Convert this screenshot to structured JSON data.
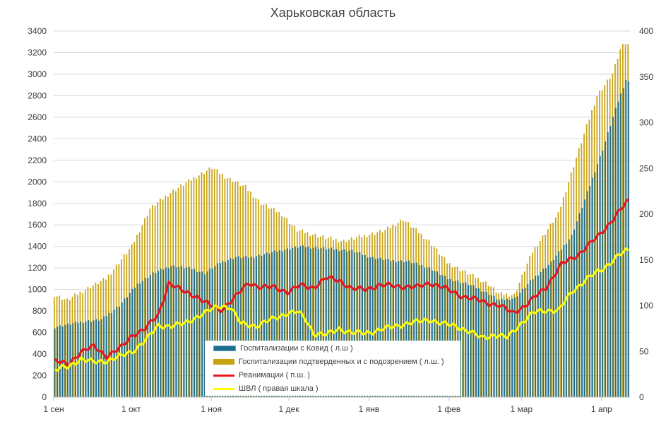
{
  "chart_data": {
    "type": "bar+line",
    "title": "Харьковская область",
    "left_axis": {
      "min": 0,
      "max": 3400,
      "step": 200,
      "ticks": [
        "0",
        "200",
        "400",
        "600",
        "800",
        "1000",
        "1200",
        "1400",
        "1600",
        "1800",
        "2000",
        "2200",
        "2400",
        "2600",
        "2800",
        "3000",
        "3200",
        "3400"
      ]
    },
    "right_axis": {
      "min": 0,
      "max": 400,
      "step": 50,
      "ticks": [
        "0",
        "50",
        "100",
        "150",
        "200",
        "250",
        "300",
        "350",
        "400"
      ]
    },
    "x_labels": [
      {
        "label": "1 сен",
        "day": 0
      },
      {
        "label": "1 окт",
        "day": 30
      },
      {
        "label": "1 ноя",
        "day": 61
      },
      {
        "label": "1 дек",
        "day": 91
      },
      {
        "label": "1 янв",
        "day": 122
      },
      {
        "label": "1 фев",
        "day": 153
      },
      {
        "label": "1 мар",
        "day": 181
      },
      {
        "label": "1 апр",
        "day": 212
      }
    ],
    "total_days": 223,
    "series": [
      {
        "name": "Госпитализации подтверденных и с подозрением ( л.ш. )",
        "type": "bar",
        "axis": "left",
        "color": "#C8A414",
        "keypoints": [
          [
            0,
            950
          ],
          [
            5,
            900
          ],
          [
            12,
            1000
          ],
          [
            20,
            1100
          ],
          [
            30,
            1400
          ],
          [
            37,
            1750
          ],
          [
            45,
            1900
          ],
          [
            55,
            2050
          ],
          [
            61,
            2130
          ],
          [
            66,
            2050
          ],
          [
            74,
            1950
          ],
          [
            80,
            1800
          ],
          [
            88,
            1700
          ],
          [
            94,
            1550
          ],
          [
            105,
            1480
          ],
          [
            112,
            1450
          ],
          [
            120,
            1500
          ],
          [
            128,
            1550
          ],
          [
            135,
            1650
          ],
          [
            145,
            1450
          ],
          [
            152,
            1250
          ],
          [
            160,
            1150
          ],
          [
            168,
            1050
          ],
          [
            172,
            960
          ],
          [
            178,
            950
          ],
          [
            185,
            1350
          ],
          [
            195,
            1700
          ],
          [
            203,
            2300
          ],
          [
            210,
            2800
          ],
          [
            216,
            3000
          ],
          [
            220,
            3300
          ],
          [
            223,
            3250
          ]
        ]
      },
      {
        "name": "Госпитализации с Ковид ( л.ш )",
        "type": "bar",
        "axis": "left",
        "color": "#1F6E8C",
        "keypoints": [
          [
            0,
            650
          ],
          [
            10,
            700
          ],
          [
            18,
            720
          ],
          [
            25,
            850
          ],
          [
            32,
            1050
          ],
          [
            38,
            1150
          ],
          [
            45,
            1220
          ],
          [
            52,
            1200
          ],
          [
            58,
            1150
          ],
          [
            64,
            1250
          ],
          [
            70,
            1300
          ],
          [
            76,
            1300
          ],
          [
            85,
            1350
          ],
          [
            95,
            1400
          ],
          [
            105,
            1380
          ],
          [
            115,
            1360
          ],
          [
            122,
            1300
          ],
          [
            130,
            1270
          ],
          [
            137,
            1260
          ],
          [
            145,
            1200
          ],
          [
            152,
            1100
          ],
          [
            160,
            1050
          ],
          [
            168,
            960
          ],
          [
            172,
            900
          ],
          [
            178,
            920
          ],
          [
            185,
            1100
          ],
          [
            192,
            1250
          ],
          [
            200,
            1500
          ],
          [
            206,
            1900
          ],
          [
            212,
            2300
          ],
          [
            218,
            2750
          ],
          [
            221,
            2950
          ],
          [
            223,
            2900
          ]
        ]
      },
      {
        "name": "Реанимации ( п.ш. )",
        "type": "line",
        "axis": "right",
        "color": "#E8151B",
        "keypoints": [
          [
            0,
            40
          ],
          [
            5,
            35
          ],
          [
            10,
            50
          ],
          [
            15,
            55
          ],
          [
            20,
            45
          ],
          [
            26,
            55
          ],
          [
            30,
            68
          ],
          [
            35,
            75
          ],
          [
            40,
            90
          ],
          [
            44,
            125
          ],
          [
            50,
            115
          ],
          [
            55,
            110
          ],
          [
            60,
            100
          ],
          [
            64,
            95
          ],
          [
            70,
            110
          ],
          [
            75,
            125
          ],
          [
            80,
            120
          ],
          [
            85,
            120
          ],
          [
            90,
            115
          ],
          [
            95,
            122
          ],
          [
            100,
            120
          ],
          [
            105,
            130
          ],
          [
            110,
            128
          ],
          [
            115,
            118
          ],
          [
            120,
            118
          ],
          [
            125,
            122
          ],
          [
            130,
            122
          ],
          [
            140,
            120
          ],
          [
            145,
            125
          ],
          [
            150,
            120
          ],
          [
            158,
            110
          ],
          [
            165,
            105
          ],
          [
            172,
            100
          ],
          [
            177,
            92
          ],
          [
            182,
            100
          ],
          [
            190,
            120
          ],
          [
            196,
            145
          ],
          [
            202,
            155
          ],
          [
            210,
            175
          ],
          [
            216,
            195
          ],
          [
            219,
            205
          ],
          [
            223,
            218
          ]
        ]
      },
      {
        "name": "ШВЛ ( правая шкала )",
        "type": "line",
        "axis": "right",
        "color": "#FFFF00",
        "keypoints": [
          [
            0,
            30
          ],
          [
            5,
            33
          ],
          [
            10,
            42
          ],
          [
            15,
            38
          ],
          [
            20,
            40
          ],
          [
            26,
            45
          ],
          [
            30,
            50
          ],
          [
            36,
            65
          ],
          [
            40,
            78
          ],
          [
            45,
            78
          ],
          [
            50,
            80
          ],
          [
            55,
            88
          ],
          [
            60,
            95
          ],
          [
            64,
            100
          ],
          [
            68,
            98
          ],
          [
            72,
            80
          ],
          [
            78,
            78
          ],
          [
            84,
            85
          ],
          [
            90,
            92
          ],
          [
            94,
            93
          ],
          [
            97,
            85
          ],
          [
            100,
            70
          ],
          [
            105,
            68
          ],
          [
            110,
            75
          ],
          [
            115,
            70
          ],
          [
            120,
            70
          ],
          [
            128,
            75
          ],
          [
            135,
            80
          ],
          [
            140,
            82
          ],
          [
            145,
            85
          ],
          [
            150,
            80
          ],
          [
            155,
            78
          ],
          [
            160,
            72
          ],
          [
            165,
            65
          ],
          [
            170,
            68
          ],
          [
            175,
            65
          ],
          [
            180,
            80
          ],
          [
            185,
            92
          ],
          [
            190,
            95
          ],
          [
            195,
            95
          ],
          [
            200,
            115
          ],
          [
            206,
            130
          ],
          [
            212,
            140
          ],
          [
            218,
            155
          ],
          [
            223,
            162
          ]
        ]
      }
    ],
    "legend_order": [
      1,
      0,
      2,
      3
    ]
  }
}
